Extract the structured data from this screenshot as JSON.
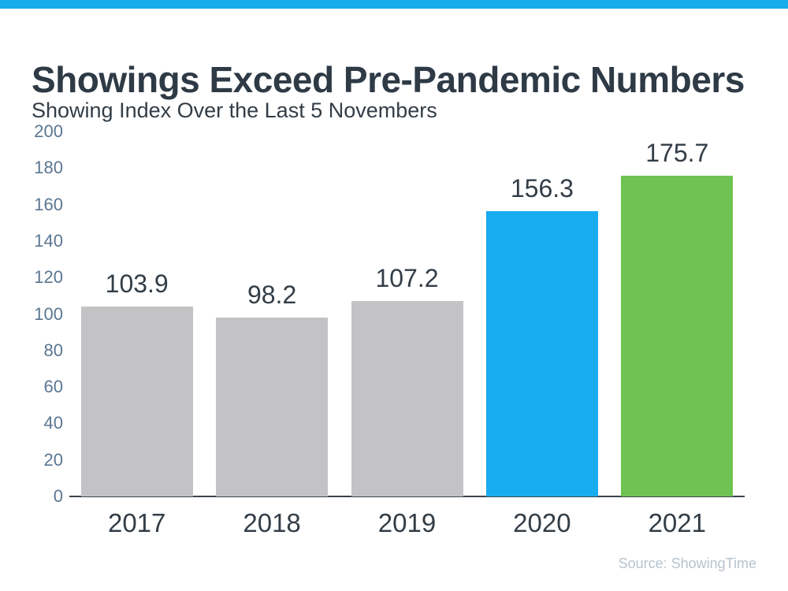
{
  "header": {
    "title": "Showings Exceed Pre-Pandemic Numbers",
    "subtitle": "Showing Index Over the Last 5 Novembers"
  },
  "footer": {
    "source": "Source: ShowingTime"
  },
  "colors": {
    "accent_bar": "#17abec",
    "title_text": "#2e3a45",
    "subtitle_text": "#333d47",
    "axis_label": "#5b7691",
    "axis_line": "#3b444c",
    "value_label": "#333d47",
    "source_text": "#b7c3ce",
    "bar_gray": "#c3c3c5",
    "bar_blue": "#18abee",
    "bar_green": "#6ec353"
  },
  "chart_data": {
    "type": "bar",
    "title": "Showings Exceed Pre-Pandemic Numbers",
    "subtitle": "Showing Index Over the Last 5 Novembers",
    "categories": [
      "2017",
      "2018",
      "2019",
      "2020",
      "2021"
    ],
    "values": [
      103.9,
      98.2,
      107.2,
      156.3,
      175.7
    ],
    "value_labels": [
      "103.9",
      "98.2",
      "107.2",
      "156.3",
      "175.7"
    ],
    "bar_colors": [
      "#c3c3c5",
      "#c3c3c5",
      "#c3c3c5",
      "#18abee",
      "#6ec353"
    ],
    "xlabel": "",
    "ylabel": "",
    "ylim": [
      0,
      200
    ],
    "yticks": [
      0,
      20,
      40,
      60,
      80,
      100,
      120,
      140,
      160,
      180,
      200
    ],
    "grid": false,
    "legend": false,
    "annotations": [
      "Source: ShowingTime"
    ]
  }
}
